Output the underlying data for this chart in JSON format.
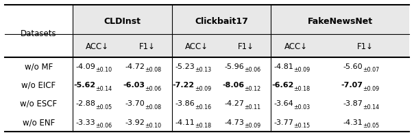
{
  "group_headers": [
    "CLDInst",
    "Clickbait17",
    "FakeNewsNet"
  ],
  "col_labels": [
    "ACC↓",
    "F1↓",
    "ACC↓",
    "F1↓",
    "ACC↓",
    "F1↓"
  ],
  "rows": [
    {
      "label": "w/o MF",
      "values": [
        {
          "main": "-4.09",
          "sub": "±0.10",
          "bold": false
        },
        {
          "main": "-4.72",
          "sub": "±0.08",
          "bold": false
        },
        {
          "main": "-5.23",
          "sub": "±0.13",
          "bold": false
        },
        {
          "main": "-5.96",
          "sub": "±0.06",
          "bold": false
        },
        {
          "main": "-4.81",
          "sub": "±0.09",
          "bold": false
        },
        {
          "main": "-5.60",
          "sub": "±0.07",
          "bold": false
        }
      ]
    },
    {
      "label": "w/o EICF",
      "values": [
        {
          "main": "-5.62",
          "sub": "±0.14",
          "bold": true
        },
        {
          "main": "-6.03",
          "sub": "±0.06",
          "bold": true
        },
        {
          "main": "-7.22",
          "sub": "±0.09",
          "bold": true
        },
        {
          "main": "-8.06",
          "sub": "±0.12",
          "bold": true
        },
        {
          "main": "-6.62",
          "sub": "±0.18",
          "bold": true
        },
        {
          "main": "-7.07",
          "sub": "±0.09",
          "bold": true
        }
      ]
    },
    {
      "label": "w/o ESCF",
      "values": [
        {
          "main": "-2.88",
          "sub": "±0.05",
          "bold": false
        },
        {
          "main": "-3.70",
          "sub": "±0.08",
          "bold": false
        },
        {
          "main": "-3.86",
          "sub": "±0.16",
          "bold": false
        },
        {
          "main": "-4.27",
          "sub": "±0.11",
          "bold": false
        },
        {
          "main": "-3.64",
          "sub": "±0.03",
          "bold": false
        },
        {
          "main": "-3.87",
          "sub": "±0.14",
          "bold": false
        }
      ]
    },
    {
      "label": "w/o ENF",
      "values": [
        {
          "main": "-3.33",
          "sub": "±0.06",
          "bold": false
        },
        {
          "main": "-3.92",
          "sub": "±0.10",
          "bold": false
        },
        {
          "main": "-4.11",
          "sub": "±0.18",
          "bold": false
        },
        {
          "main": "-4.73",
          "sub": "±0.09",
          "bold": false
        },
        {
          "main": "-3.77",
          "sub": "±0.15",
          "bold": false
        },
        {
          "main": "-4.31",
          "sub": "±0.05",
          "bold": false
        }
      ]
    }
  ],
  "bg_header": "#e8e8e8",
  "bg_white": "#ffffff",
  "text_color": "#000000"
}
